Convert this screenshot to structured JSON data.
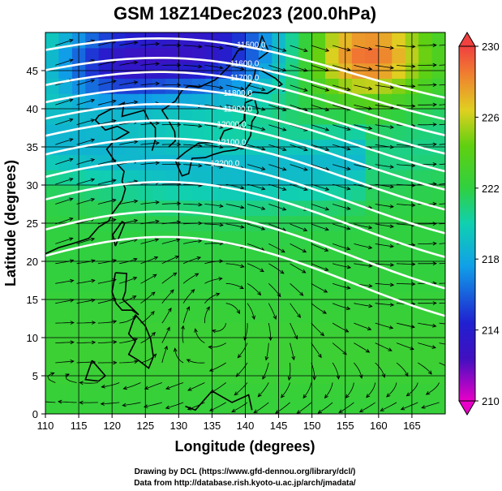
{
  "chart_data": {
    "type": "heatmap",
    "title": "GSM 18Z14Dec2023 (200.0hPa)",
    "xlabel": "Longitude (degrees)",
    "ylabel": "Latitude  (degrees)",
    "xlim": [
      110,
      170
    ],
    "ylim": [
      0,
      50
    ],
    "x_ticks": [
      110,
      115,
      120,
      125,
      130,
      135,
      140,
      145,
      150,
      155,
      160,
      165
    ],
    "y_ticks": [
      0,
      5,
      10,
      15,
      20,
      25,
      30,
      35,
      40,
      45
    ],
    "colorbar": {
      "range": [
        210,
        230
      ],
      "tick_values": [
        210,
        214,
        218,
        222,
        226,
        230
      ],
      "tick_labels": [
        "210",
        "214",
        "218",
        "222",
        "226",
        "230"
      ],
      "colors": [
        "#e800c8",
        "#2020d0",
        "#10b0e8",
        "#20d080",
        "#40d020",
        "#e8d020",
        "#f04040"
      ]
    },
    "contours": {
      "labels": [
        "11500.0",
        "11600.0",
        "11700.0",
        "11800.0",
        "11900.0",
        "12000.0",
        "12100.0",
        "12200.0"
      ],
      "levels": [
        11500,
        11600,
        11700,
        11800,
        11900,
        12000,
        12100,
        12200,
        12300,
        12400,
        12500
      ],
      "contour_lat_at_110": [
        46.5,
        43.8,
        41.8,
        39.5,
        37.3,
        35.0,
        32.5,
        29.5,
        26.5,
        22.5,
        19.0
      ],
      "color": "#ffffff"
    },
    "field_features": [
      {
        "name": "warm high (NE)",
        "lon": 158,
        "lat": 47,
        "value": 229
      },
      {
        "name": "cold trough (N)",
        "lon": 135,
        "lat": 48,
        "value": 214
      },
      {
        "name": "cold core (NW)",
        "lon": 120,
        "lat": 46,
        "value": 215
      },
      {
        "name": "tropical anticyclone center",
        "lon": 137,
        "lat": 15,
        "value": 222
      }
    ]
  },
  "credits": {
    "line1": "Drawing by DCL (https://www.gfd-dennou.org/library/dcl/)",
    "line2": "Data from http://database.rish.kyoto-u.ac.jp/arch/jmadata/"
  }
}
